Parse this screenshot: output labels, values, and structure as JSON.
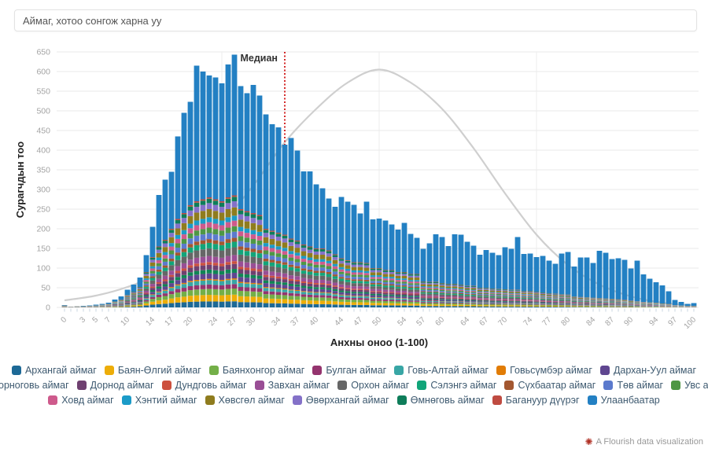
{
  "controls": {
    "dropdown_placeholder": "Аймаг, хотоо сонгож харна уу"
  },
  "chart_data": {
    "type": "bar",
    "stacked": true,
    "xlabel": "Анхны оноо (1-100)",
    "ylabel": "Сурагчдын тоо",
    "ylim": [
      0,
      650
    ],
    "y_ticks": [
      0,
      50,
      100,
      150,
      200,
      250,
      300,
      350,
      400,
      450,
      500,
      550,
      600,
      650
    ],
    "x_range": [
      0,
      100
    ],
    "x_tick_labels": [
      0,
      3,
      5,
      7,
      10,
      14,
      17,
      20,
      24,
      27,
      30,
      34,
      37,
      40,
      44,
      47,
      50,
      54,
      57,
      60,
      64,
      67,
      70,
      74,
      77,
      80,
      84,
      87,
      90,
      94,
      97,
      100
    ],
    "grid": true,
    "annotation": {
      "label": "Медиан",
      "x": 35,
      "line_color": "#d42a2a"
    },
    "totals": [
      6,
      2,
      3,
      4,
      5,
      7,
      9,
      12,
      20,
      28,
      45,
      58,
      76,
      133,
      205,
      286,
      325,
      345,
      435,
      495,
      523,
      615,
      600,
      590,
      585,
      570,
      618,
      643,
      563,
      545,
      566,
      539,
      491,
      466,
      458,
      414,
      431,
      399,
      346,
      346,
      313,
      303,
      277,
      256,
      281,
      269,
      261,
      239,
      269,
      224,
      226,
      221,
      211,
      198,
      215,
      187,
      177,
      149,
      163,
      186,
      179,
      156,
      186,
      185,
      167,
      157,
      134,
      146,
      139,
      133,
      153,
      149,
      179,
      136,
      137,
      128,
      131,
      119,
      111,
      137,
      141,
      104,
      127,
      127,
      113,
      144,
      139,
      123,
      125,
      121,
      99,
      119,
      84,
      73,
      64,
      56,
      41,
      19,
      14,
      9,
      11
    ],
    "aimag_subtotals": [
      5,
      2,
      3,
      3,
      4,
      5,
      7,
      9,
      15,
      20,
      32,
      40,
      52,
      90,
      128,
      155,
      172,
      200,
      225,
      240,
      260,
      270,
      275,
      280,
      275,
      270,
      280,
      285,
      250,
      245,
      240,
      235,
      200,
      195,
      190,
      185,
      175,
      170,
      160,
      155,
      150,
      150,
      145,
      135,
      125,
      120,
      115,
      115,
      113,
      100,
      100,
      95,
      95,
      90,
      90,
      85,
      85,
      66,
      65,
      65,
      62,
      60,
      60,
      58,
      55,
      55,
      50,
      50,
      48,
      47,
      46,
      45,
      45,
      42,
      42,
      40,
      38,
      36,
      35,
      34,
      33,
      28,
      27,
      26,
      25,
      24,
      23,
      22,
      21,
      20,
      18,
      16,
      14,
      13,
      12,
      10,
      9,
      6,
      5,
      4,
      4
    ],
    "series": [
      {
        "name": "Архангай аймаг",
        "color": "#1D6996",
        "weight": 0.055
      },
      {
        "name": "Баян-Өлгий аймаг",
        "color": "#EDAD08",
        "weight": 0.06
      },
      {
        "name": "Баянхонгор аймаг",
        "color": "#73AF48",
        "weight": 0.055
      },
      {
        "name": "Булган аймаг",
        "color": "#94346E",
        "weight": 0.04
      },
      {
        "name": "Говь-Алтай аймаг",
        "color": "#38A6A5",
        "weight": 0.04
      },
      {
        "name": "Говьсүмбэр аймаг",
        "color": "#E17C05",
        "weight": 0.012
      },
      {
        "name": "Дархан-Уул аймаг",
        "color": "#5F4690",
        "weight": 0.05
      },
      {
        "name": "Дорноговь аймаг",
        "color": "#0F8554",
        "weight": 0.035
      },
      {
        "name": "Дорнод аймаг",
        "color": "#6F4070",
        "weight": 0.045
      },
      {
        "name": "Дундговь аймаг",
        "color": "#CC503E",
        "weight": 0.025
      },
      {
        "name": "Завхан аймаг",
        "color": "#994E95",
        "weight": 0.055
      },
      {
        "name": "Орхон аймаг",
        "color": "#666666",
        "weight": 0.07
      },
      {
        "name": "Сэлэнгэ аймаг",
        "color": "#11A579",
        "weight": 0.05
      },
      {
        "name": "Сүхбаатар аймаг",
        "color": "#A35730",
        "weight": 0.035
      },
      {
        "name": "Төв аймаг",
        "color": "#5B7ACD",
        "weight": 0.055
      },
      {
        "name": "Увс аймаг",
        "color": "#4E9744",
        "weight": 0.05
      },
      {
        "name": "Ховд аймаг",
        "color": "#CE5A8C",
        "weight": 0.05
      },
      {
        "name": "Хэнтий аймаг",
        "color": "#1B9BC8",
        "weight": 0.045
      },
      {
        "name": "Хөвсгөл аймаг",
        "color": "#8F7C1E",
        "weight": 0.075
      },
      {
        "name": "Өвөрхангай аймаг",
        "color": "#8471C8",
        "weight": 0.055
      },
      {
        "name": "Өмнөговь аймаг",
        "color": "#0E7D5A",
        "weight": 0.04
      },
      {
        "name": "Багануур дүүрэг",
        "color": "#BF4B41",
        "weight": 0.013
      },
      {
        "name": "Улаанбаатар",
        "color": "#2380C3"
      }
    ],
    "legend_rows": [
      7,
      9,
      7
    ],
    "curve": {
      "color": "#cfcfcf",
      "points": [
        [
          0,
          18
        ],
        [
          5,
          30
        ],
        [
          10,
          52
        ],
        [
          15,
          85
        ],
        [
          20,
          135
        ],
        [
          25,
          215
        ],
        [
          30,
          310
        ],
        [
          35,
          420
        ],
        [
          40,
          505
        ],
        [
          45,
          572
        ],
        [
          50,
          605
        ],
        [
          55,
          572
        ],
        [
          60,
          505
        ],
        [
          65,
          405
        ],
        [
          70,
          290
        ],
        [
          75,
          185
        ],
        [
          80,
          108
        ],
        [
          85,
          58
        ],
        [
          90,
          28
        ],
        [
          95,
          12
        ],
        [
          100,
          5
        ]
      ]
    }
  },
  "footer": {
    "attribution": "A Flourish data visualization",
    "logo_color": "#b03024"
  }
}
